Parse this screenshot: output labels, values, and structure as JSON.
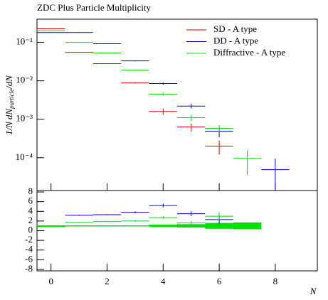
{
  "chart_data": [
    {
      "type": "errorbar",
      "title": "ZDC Plus Particle Multiplicity",
      "ylabel_parts": [
        "1/N",
        "dN",
        "particle",
        "/dN"
      ],
      "log_y": true,
      "x": [
        0,
        1,
        2,
        3,
        4,
        5,
        6,
        7,
        8
      ],
      "xlim": [
        -0.5,
        9.5
      ],
      "xticks": [
        0,
        2,
        4,
        6,
        8
      ],
      "ylim": [
        1.4e-05,
        0.4
      ],
      "yticks": [
        {
          "value": 0.1,
          "label": "10⁻¹"
        },
        {
          "value": 0.01,
          "label": "10⁻²"
        },
        {
          "value": 0.001,
          "label": "10⁻³"
        },
        {
          "value": 0.0001,
          "label": "10⁻⁴"
        }
      ],
      "legend": "top-right",
      "series": [
        {
          "name": "SD - A type",
          "color": "#e00000",
          "values": [
            0.225,
            0.055,
            0.028,
            0.0088,
            0.0016,
            0.00063,
            0.0002,
            null,
            null
          ],
          "errors": [
            0.004,
            0.001,
            0.0006,
            0.0003,
            0.0003,
            0.00015,
            8e-05,
            null,
            null
          ]
        },
        {
          "name": "DD - A type",
          "color": "#0000e0",
          "values": [
            0.18,
            0.18,
            0.092,
            0.033,
            0.0085,
            0.0022,
            0.00049,
            null,
            4.9e-05
          ],
          "errors": [
            0.003,
            0.003,
            0.002,
            0.001,
            0.0006,
            0.0003,
            0.00015,
            null,
            4.5e-05
          ]
        },
        {
          "name": "Diffractive - A type",
          "color": "#00e000",
          "values": [
            0.2,
            0.1,
            0.053,
            0.019,
            0.0045,
            0.0011,
            0.00058,
            9.6e-05,
            null
          ],
          "errors": [
            0.003,
            0.002,
            0.001,
            0.0006,
            0.0004,
            0.0002,
            0.00012,
            6e-05,
            null
          ]
        }
      ]
    },
    {
      "type": "errorbar",
      "xlabel": "N",
      "x": [
        0,
        1,
        2,
        3,
        4,
        5,
        6,
        7,
        8
      ],
      "xlim": [
        -0.5,
        9.5
      ],
      "xticks": [
        0,
        2,
        4,
        6,
        8
      ],
      "ylim": [
        -8.3,
        8.3
      ],
      "yticks": [
        -8,
        -6,
        -4,
        -2,
        0,
        2,
        4,
        6,
        8
      ],
      "series": [
        {
          "color": "#0000e0",
          "values": [
            0.8,
            3.2,
            3.3,
            3.8,
            5.2,
            3.5,
            2.3,
            null,
            null
          ],
          "errors": [
            0.05,
            0.1,
            0.1,
            0.2,
            0.4,
            0.5,
            0.9,
            null,
            null
          ]
        },
        {
          "color": "#00e000",
          "values": [
            0.8,
            1.7,
            1.9,
            2.0,
            2.7,
            1.6,
            3.0,
            null,
            null
          ],
          "errors": [
            0.05,
            0.1,
            0.1,
            0.15,
            0.3,
            0.4,
            0.8,
            null,
            null
          ]
        }
      ],
      "band": {
        "color": "#00e000",
        "values": [
          1,
          1,
          1,
          1,
          1,
          1,
          1,
          1,
          null
        ],
        "errors": [
          0.05,
          0.05,
          0.08,
          0.1,
          0.25,
          0.35,
          0.6,
          0.7,
          null
        ]
      }
    }
  ]
}
